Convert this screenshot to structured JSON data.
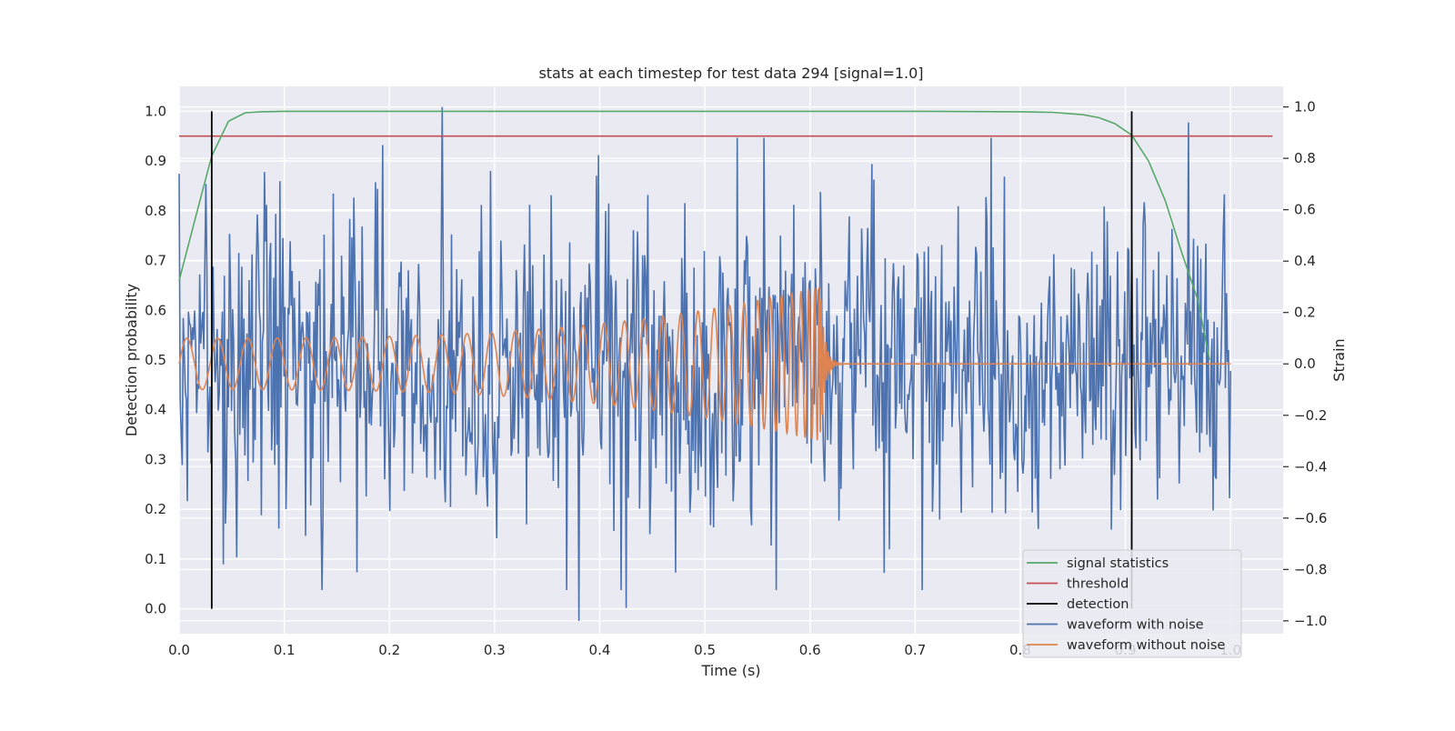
{
  "chart_data": {
    "type": "line",
    "title": "stats at each timestep for test data 294 [signal=1.0]",
    "xlabel": "Time (s)",
    "ylabel_left": "Detection probability",
    "ylabel_right": "Strain",
    "xlim": [
      0.0,
      1.05
    ],
    "ylim_left": [
      -0.05,
      1.05
    ],
    "ylim_right": [
      -1.05,
      1.08
    ],
    "x_ticks": [
      "0.0",
      "0.1",
      "0.2",
      "0.3",
      "0.4",
      "0.5",
      "0.6",
      "0.7",
      "0.8",
      "0.9",
      "1.0"
    ],
    "y_ticks_left": [
      "0.0",
      "0.1",
      "0.2",
      "0.3",
      "0.4",
      "0.5",
      "0.6",
      "0.7",
      "0.8",
      "0.9",
      "1.0"
    ],
    "y_ticks_right": [
      "−1.0",
      "−0.8",
      "−0.6",
      "−0.4",
      "−0.2",
      "0.0",
      "0.2",
      "0.4",
      "0.6",
      "0.8",
      "1.0"
    ],
    "grid": true,
    "legend_position": "lower-right",
    "background_color": "#eaeaf2",
    "series": [
      {
        "name": "signal statistics",
        "color": "#55a868",
        "axis": "left",
        "x": [
          0.0,
          0.016,
          0.031,
          0.047,
          0.063,
          0.078,
          0.1,
          0.2,
          0.3,
          0.4,
          0.5,
          0.6,
          0.7,
          0.8,
          0.83,
          0.86,
          0.875,
          0.89,
          0.906,
          0.922,
          0.938,
          0.953,
          0.969,
          0.98
        ],
        "y": [
          0.66,
          0.79,
          0.91,
          0.98,
          0.997,
          0.999,
          1.0,
          1.0,
          1.0,
          1.0,
          1.0,
          1.0,
          1.0,
          0.999,
          0.998,
          0.993,
          0.987,
          0.975,
          0.952,
          0.9,
          0.82,
          0.72,
          0.62,
          0.5
        ]
      },
      {
        "name": "threshold",
        "color": "#c44e52",
        "axis": "left",
        "x": [
          0.0,
          1.04
        ],
        "y": [
          0.95,
          0.95
        ]
      },
      {
        "name": "detection",
        "color": "#000000",
        "axis": "left",
        "x_values": [
          0.031,
          0.906
        ],
        "y_range": [
          0.0,
          1.0
        ]
      },
      {
        "name": "waveform with noise",
        "color": "#4c72b0",
        "axis": "right",
        "x_range": [
          0.0,
          1.0
        ],
        "sample_count": 1024,
        "amplitude_range": [
          -1.0,
          1.0
        ],
        "highlighted_peaks": [
          {
            "x": 0.25,
            "y": 1.0
          },
          {
            "x": 0.38,
            "y": -1.0
          },
          {
            "x": 0.425,
            "y": -0.95
          },
          {
            "x": 0.96,
            "y": 0.94
          },
          {
            "x": 0.0,
            "y": 0.74
          }
        ]
      },
      {
        "name": "waveform without noise",
        "color": "#dd8452",
        "axis": "right",
        "x_range": [
          0.0,
          1.0
        ],
        "merger_time": 0.61,
        "amplitude_start": 0.1,
        "amplitude_peak": 0.3
      }
    ]
  }
}
